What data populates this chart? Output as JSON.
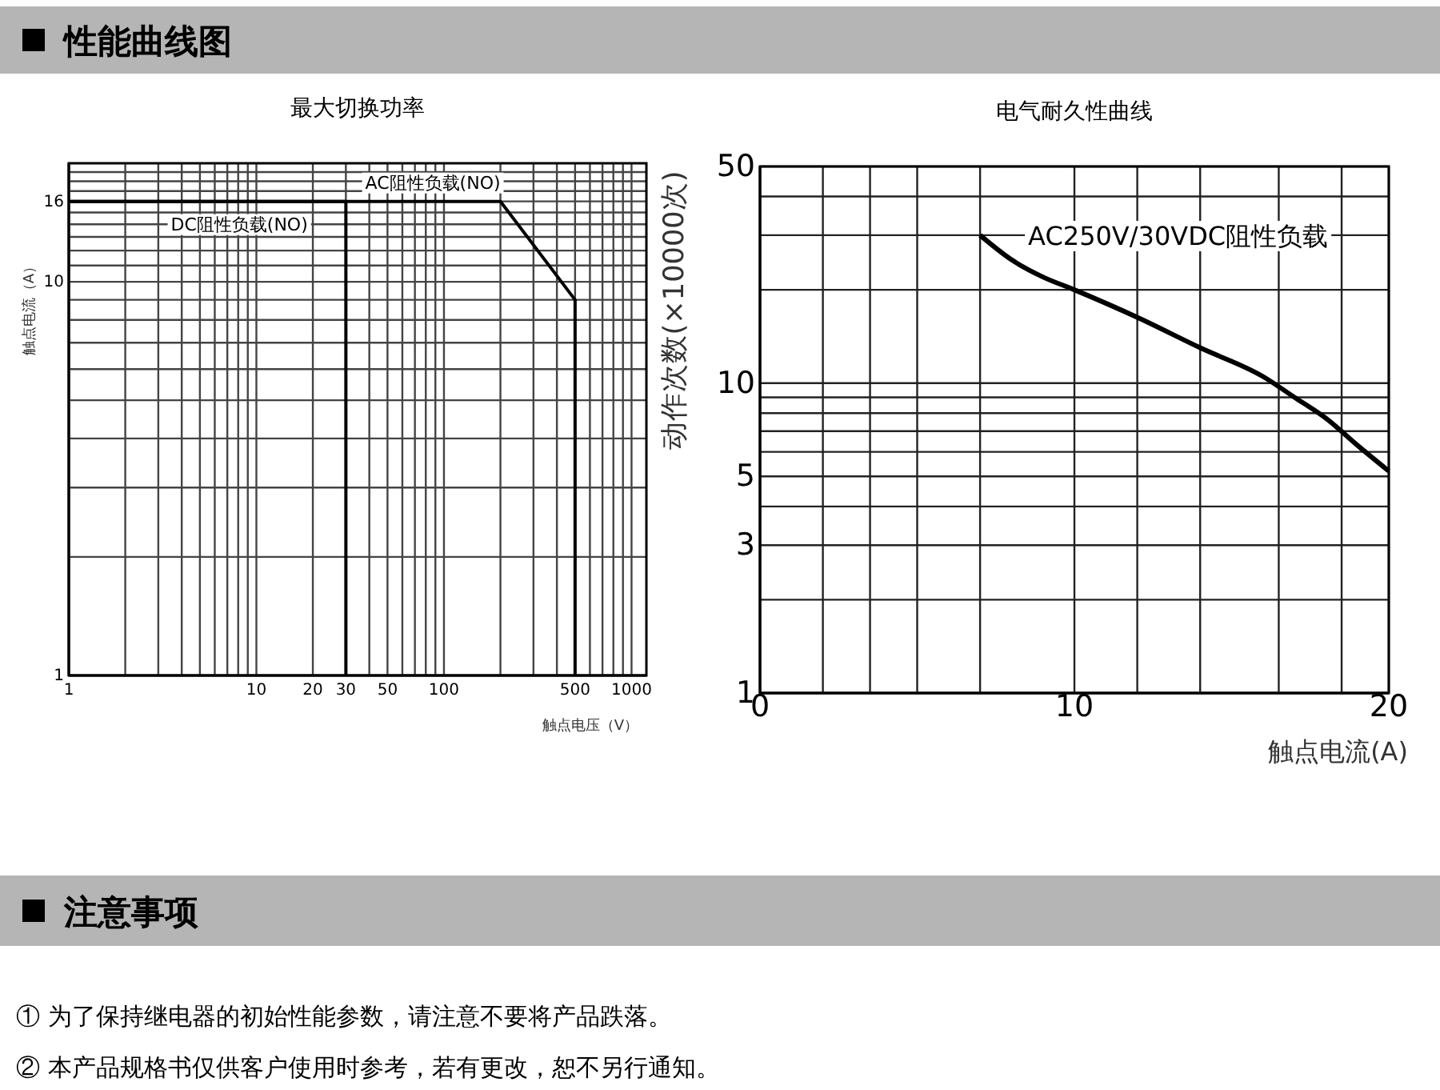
{
  "chart_data": [
    {
      "type": "line",
      "title": "最大切换功率",
      "xlabel": "触点电压（V）",
      "ylabel": "触点电流（A）",
      "log": "xy",
      "grid": true,
      "line_style": "solid",
      "marker": "none",
      "xlim": [
        1,
        1200
      ],
      "ylim": [
        1,
        20
      ],
      "xticks": [
        1,
        {
          "value": 2,
          "label": null
        },
        {
          "value": 3,
          "label": null
        },
        {
          "value": 4,
          "label": null
        },
        {
          "value": 5,
          "label": null
        },
        {
          "value": 6,
          "label": null
        },
        {
          "value": 7,
          "label": null
        },
        {
          "value": 8,
          "label": null
        },
        {
          "value": 9,
          "label": null
        },
        10,
        20,
        30,
        {
          "value": 40,
          "label": null
        },
        50,
        {
          "value": 60,
          "label": null
        },
        {
          "value": 70,
          "label": null
        },
        {
          "value": 80,
          "label": null
        },
        {
          "value": 90,
          "label": null
        },
        100,
        {
          "value": 200,
          "label": null
        },
        {
          "value": 300,
          "label": null
        },
        {
          "value": 400,
          "label": null
        },
        500,
        {
          "value": 600,
          "label": null
        },
        {
          "value": 700,
          "label": null
        },
        {
          "value": 800,
          "label": null
        },
        {
          "value": 900,
          "label": null
        },
        1000
      ],
      "yticks": [
        1,
        {
          "value": 2,
          "label": null
        },
        {
          "value": 3,
          "label": null
        },
        {
          "value": 4,
          "label": null
        },
        {
          "value": 5,
          "label": null
        },
        {
          "value": 6,
          "label": null
        },
        {
          "value": 7,
          "label": null
        },
        {
          "value": 8,
          "label": null
        },
        {
          "value": 9,
          "label": null
        },
        10,
        {
          "value": 11,
          "label": null
        },
        {
          "value": 12,
          "label": null
        },
        {
          "value": 13,
          "label": null
        },
        {
          "value": 14,
          "label": null
        },
        {
          "value": 15,
          "label": null
        },
        16,
        {
          "value": 17,
          "label": null
        },
        {
          "value": 18,
          "label": null
        },
        {
          "value": 19,
          "label": null
        }
      ],
      "series": [
        {
          "name": "AC阻性负载(NO)",
          "color": "#000000",
          "x": [
            1,
            200,
            500,
            500
          ],
          "values": [
            16,
            16,
            9,
            1
          ]
        },
        {
          "name": "DC阻性负载(NO)",
          "color": "#000000",
          "x": [
            1,
            30,
            30
          ],
          "values": [
            16,
            16,
            1
          ]
        }
      ],
      "annotations": [
        "性能曲线图"
      ]
    },
    {
      "type": "line",
      "title": "电气耐久性曲线",
      "xlabel": "触点电流(A)",
      "ylabel": "动作次数(×10000次)",
      "log": "y",
      "grid": true,
      "line_style": "solid",
      "marker": "none",
      "xlim": [
        0,
        20
      ],
      "ylim": [
        1,
        50
      ],
      "xticks": [
        0,
        {
          "value": 2,
          "label": null
        },
        {
          "value": 3.5,
          "label": null
        },
        {
          "value": 5,
          "label": null
        },
        {
          "value": 7,
          "label": null
        },
        10,
        {
          "value": 12,
          "label": null
        },
        {
          "value": 14,
          "label": null
        },
        {
          "value": 16.5,
          "label": null
        },
        {
          "value": 18.5,
          "label": null
        },
        20
      ],
      "yticks": [
        1,
        {
          "value": 2,
          "label": null
        },
        3,
        {
          "value": 4,
          "label": null
        },
        5,
        {
          "value": 6,
          "label": null
        },
        {
          "value": 7,
          "label": null
        },
        {
          "value": 8,
          "label": null
        },
        {
          "value": 9,
          "label": null
        },
        10,
        {
          "value": 20,
          "label": null
        },
        {
          "value": 30,
          "label": null
        },
        {
          "value": 40,
          "label": null
        },
        50
      ],
      "series": [
        {
          "name": "AC250V/30VDC阻性负载",
          "color": "#000000",
          "x": [
            7,
            8,
            9,
            10,
            12,
            14,
            16,
            17,
            18,
            19,
            20
          ],
          "values": [
            30,
            25,
            22,
            20,
            16.3,
            13,
            10.5,
            9,
            7.7,
            6.3,
            5.2
          ]
        }
      ],
      "annotations": [
        "注意事项",
        "① 为了保持继电器的初始性能参数，请注意不要将产品跌落。",
        "② 本产品规格书仅供客户使用时参考，若有更改，恕不另行通知。"
      ]
    }
  ]
}
